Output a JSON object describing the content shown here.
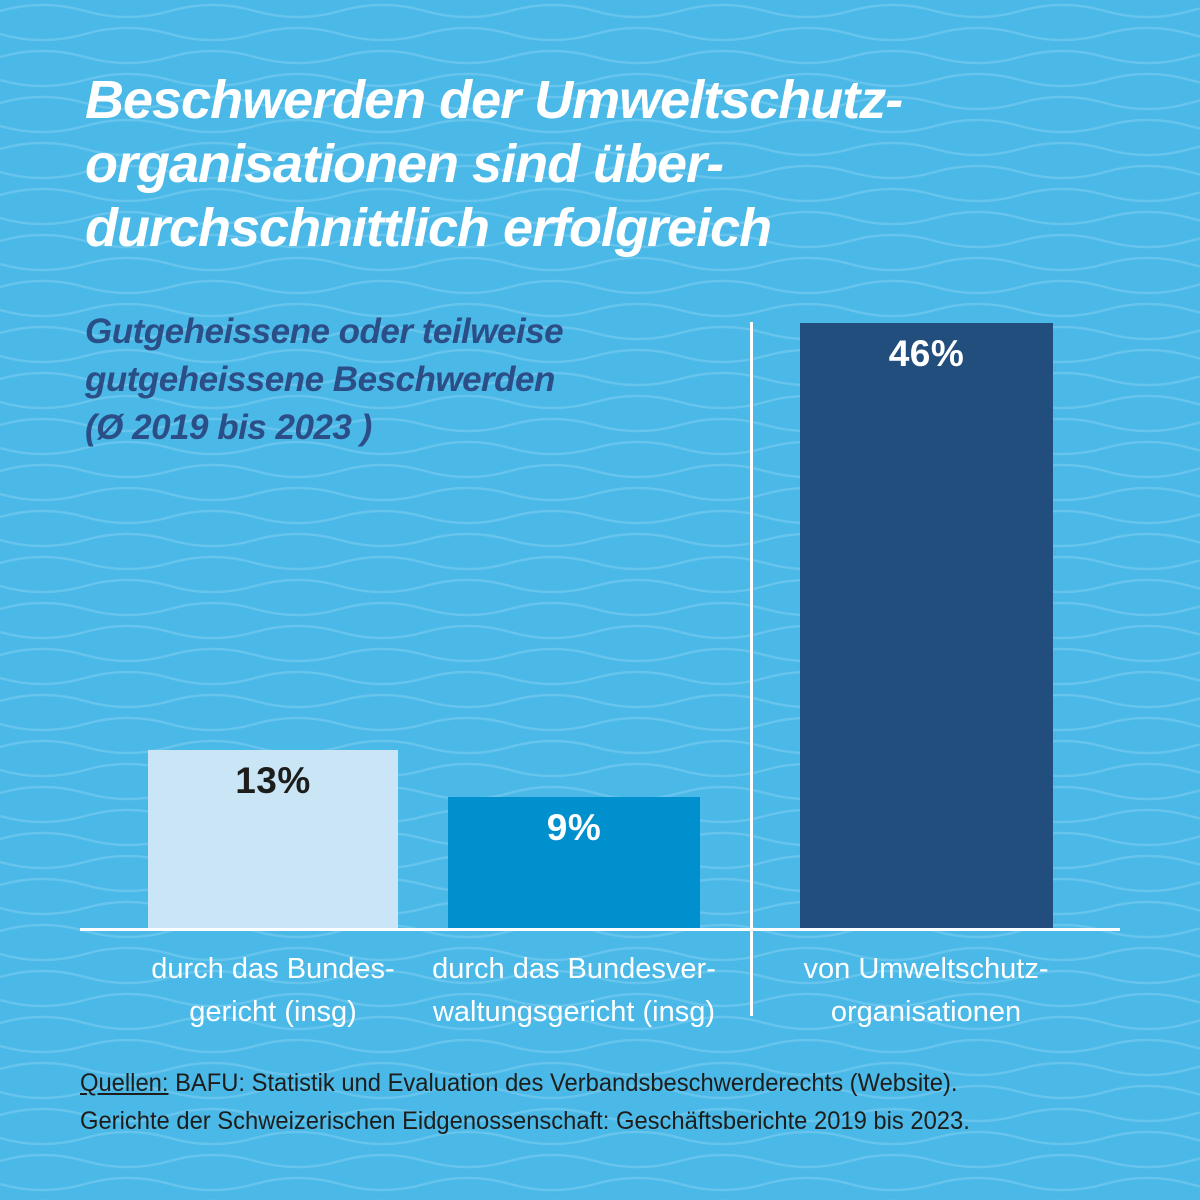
{
  "title": {
    "lines": [
      "Beschwerden der Umweltschutz-",
      "organisationen sind über-",
      "durchschnittlich erfolgreich"
    ]
  },
  "subtitle": {
    "lines": [
      "Gutgeheissene oder teilweise",
      "gutgeheissene Beschwerden",
      "(Ø 2019 bis 2023 )"
    ]
  },
  "chart_data": {
    "type": "bar",
    "title": "Gutgeheissene oder teilweise gutgeheissene Beschwerden (Ø 2019 bis 2023)",
    "categories": [
      "durch das Bundesgericht (insg)",
      "durch das Bundesverwaltungsgericht (insg)",
      "von Umweltschutzorganisationen"
    ],
    "values": [
      13,
      9,
      46
    ],
    "unit": "%",
    "ylim": [
      0,
      50
    ],
    "grid": false,
    "legend": "none",
    "separator": "vertical white line between second and third bar",
    "bars": [
      {
        "value": 13,
        "value_label": "13%",
        "label_lines": [
          "durch das Bundes-",
          "gericht (insg)"
        ],
        "fill": "#c9e5f6",
        "value_color": "#1d1d1b"
      },
      {
        "value": 9,
        "value_label": "9%",
        "label_lines": [
          "durch das Bundesver-",
          "waltungsgericht (insg)"
        ],
        "fill": "#0090ce",
        "value_color": "#ffffff"
      },
      {
        "value": 46,
        "value_label": "46%",
        "label_lines": [
          "von Umweltschutz-",
          "organisationen"
        ],
        "fill": "#214e7d",
        "value_color": "#ffffff"
      }
    ]
  },
  "sources": {
    "label": "Quellen:",
    "line1_rest": " BAFU: Statistik und Evaluation des Verbandsbeschwerderechts (Website).",
    "line2": "Gerichte der Schweizerischen Eidgenossenschaft: Geschäftsberichte 2019 bis 2023."
  },
  "colors": {
    "background": "#4ab9e8",
    "wave_line": "rgba(255,255,255,0.16)",
    "title_text": "#ffffff",
    "subtitle_text": "#2b4e87",
    "axis_lines": "#ffffff",
    "category_text": "#ffffff",
    "source_text": "#1d1d1b"
  }
}
